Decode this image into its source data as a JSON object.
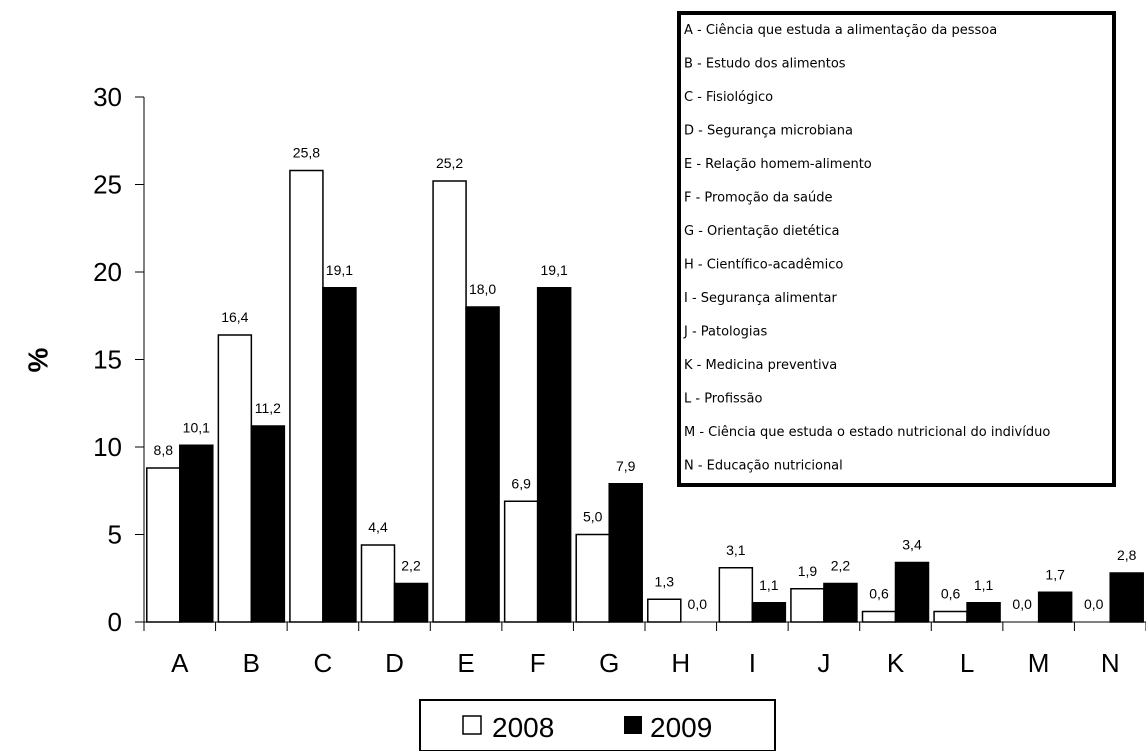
{
  "chart_data": {
    "type": "bar",
    "categories": [
      "A",
      "B",
      "C",
      "D",
      "E",
      "F",
      "G",
      "H",
      "I",
      "J",
      "K",
      "L",
      "M",
      "N"
    ],
    "series": [
      {
        "name": "2008",
        "values": [
          8.8,
          16.4,
          25.8,
          4.4,
          25.2,
          6.9,
          5.0,
          1.3,
          3.1,
          1.9,
          0.6,
          0.6,
          0.0,
          0.0
        ],
        "labels": [
          "8,8",
          "16,4",
          "25,8",
          "4,4",
          "25,2",
          "6,9",
          "5,0",
          "1,3",
          "3,1",
          "1,9",
          "0,6",
          "0,6",
          "0,0",
          "0,0"
        ],
        "color": "#ffffff"
      },
      {
        "name": "2009",
        "values": [
          10.1,
          11.2,
          19.1,
          2.2,
          18.0,
          19.1,
          7.9,
          0.0,
          1.1,
          2.2,
          3.4,
          1.1,
          1.7,
          2.8
        ],
        "labels": [
          "10,1",
          "11,2",
          "19,1",
          "2,2",
          "18,0",
          "19,1",
          "7,9",
          "0,0",
          "1,1",
          "2,2",
          "3,4",
          "1,1",
          "1,7",
          "2,8"
        ],
        "color": "#000000"
      }
    ],
    "ylabel": "%",
    "ylim": [
      0,
      30
    ],
    "yticks": [
      "0",
      "5",
      "10",
      "15",
      "20",
      "25",
      "30"
    ],
    "grid": false,
    "legend": {
      "placement": "bottom-center",
      "entries": [
        "2008",
        "2009"
      ]
    },
    "category_key": {
      "placement": "top-right",
      "entries": [
        "A - Ciência que estuda a alimentação da pessoa",
        "B - Estudo dos alimentos",
        "C - Fisiológico",
        "D - Segurança microbiana",
        "E - Relação homem-alimento",
        "F - Promoção da saúde",
        "G - Orientação dietética",
        "H - Científico-acadêmico",
        "I - Segurança alimentar",
        "J - Patologias",
        "K - Medicina preventiva",
        "L - Profissão",
        "M - Ciência que estuda o estado nutricional do indivíduo",
        "N - Educação nutricional"
      ]
    }
  }
}
